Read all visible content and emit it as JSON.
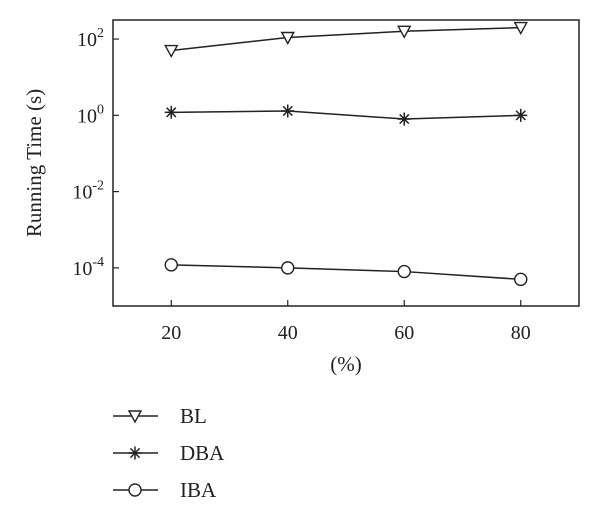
{
  "chart_data": {
    "type": "line",
    "xlabel": "(%)",
    "ylabel": "Running Time (s)",
    "y_scale": "log",
    "x": [
      20,
      40,
      60,
      80
    ],
    "xlim": [
      10,
      90
    ],
    "xticks": [
      "20",
      "40",
      "60",
      "80"
    ],
    "ylim_exponent": [
      -5.0,
      2.5
    ],
    "yticks": [
      {
        "base": "10",
        "exp": "2",
        "value": 2
      },
      {
        "base": "10",
        "exp": "0",
        "value": 0
      },
      {
        "base": "10",
        "exp": "-2",
        "value": -2
      },
      {
        "base": "10",
        "exp": "-4",
        "value": -4
      }
    ],
    "grid": false,
    "legend_placement": "below",
    "series": [
      {
        "name": "BL",
        "marker": "triangle-down",
        "values": [
          50,
          110,
          160,
          200
        ]
      },
      {
        "name": "DBA",
        "marker": "asterisk",
        "values": [
          1.2,
          1.3,
          0.8,
          1.0
        ]
      },
      {
        "name": "IBA",
        "marker": "circle",
        "values": [
          0.00012,
          0.0001,
          8e-05,
          5e-05
        ]
      }
    ]
  },
  "colors": {
    "line": "#222222",
    "axis": "#222222"
  }
}
